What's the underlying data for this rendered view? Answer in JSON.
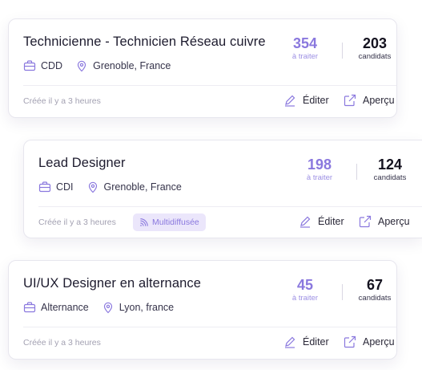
{
  "jobs": [
    {
      "title": "Technicienne - Technicien Réseau cuivre",
      "contract": "CDD",
      "location": "Grenoble, France",
      "to_process_count": "354",
      "to_process_label": "à traiter",
      "candidates_count": "203",
      "candidates_label": "candidats",
      "created": "Créée il y a 3 heures",
      "edit_label": "Éditer",
      "preview_label": "Aperçu"
    },
    {
      "title": "Lead Designer",
      "contract": "CDI",
      "location": "Grenoble, France",
      "to_process_count": "198",
      "to_process_label": "à traiter",
      "candidates_count": "124",
      "candidates_label": "candidats",
      "created": "Créée il y a 3 heures",
      "badge": "Multidiffusée",
      "edit_label": "Éditer",
      "preview_label": "Aperçu"
    },
    {
      "title": "UI/UX Designer en alternance",
      "contract": "Alternance",
      "location": "Lyon, france",
      "to_process_count": "45",
      "to_process_label": "à traiter",
      "candidates_count": "67",
      "candidates_label": "candidats",
      "created": "Créée il y a 3 heures",
      "edit_label": "Éditer",
      "preview_label": "Aperçu"
    }
  ],
  "icons": {
    "contract": "briefcase-icon",
    "location": "map-pin-icon",
    "badge": "broadcast-icon",
    "edit": "pen-icon",
    "preview": "external-link-icon"
  },
  "colors": {
    "accent": "#8a78de",
    "badge_bg": "#ebe6fb",
    "muted": "#a3a1b2"
  }
}
